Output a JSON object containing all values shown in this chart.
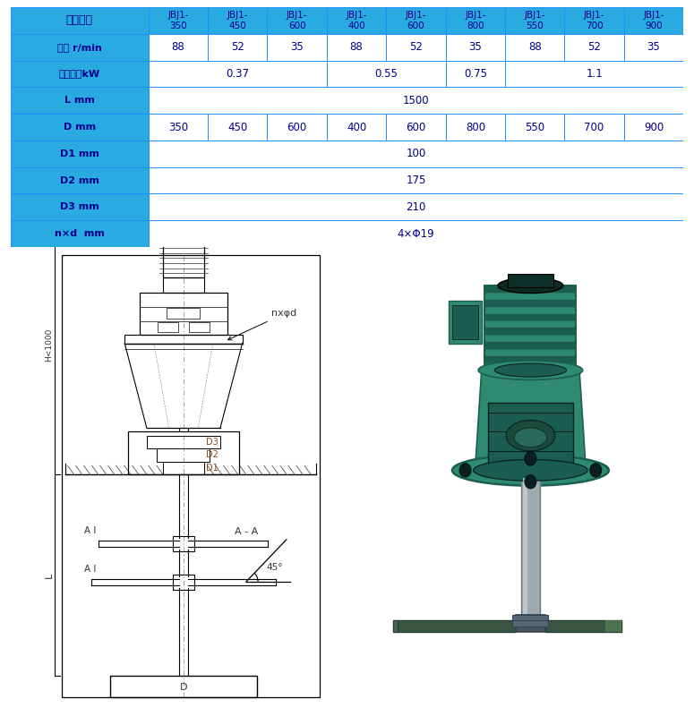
{
  "table_header_bg": "#29ABE2",
  "table_label_bg": "#29ABE2",
  "table_data_bg": "#FFFFFF",
  "table_border_color": "#1E90FF",
  "table_text_color": "#00008B",
  "bg_color": "#FFFFFF",
  "col0_label": "主要参数",
  "col_headers": [
    "JBJ1-\n350",
    "JBJ1-\n450",
    "JBJ1-\n600",
    "JBJ1-\n400",
    "JBJ1-\n600",
    "JBJ1-\n800",
    "JBJ1-\n550",
    "JBJ1-\n700",
    "JBJ1-\n900"
  ],
  "row_labels": [
    "转速 r/min",
    "电机功率kW",
    "L mm",
    "D mm",
    "D1 mm",
    "D2 mm",
    "D3 mm",
    "n×d  mm"
  ],
  "row_speed": [
    "88",
    "52",
    "35",
    "88",
    "52",
    "35",
    "88",
    "52",
    "35"
  ],
  "row_power_spans": [
    [
      0,
      3,
      "0.37"
    ],
    [
      3,
      5,
      "0.55"
    ],
    [
      5,
      6,
      "0.75"
    ],
    [
      6,
      9,
      "1.1"
    ]
  ],
  "row_L": "1500",
  "row_D": [
    "350",
    "450",
    "600",
    "400",
    "600",
    "800",
    "550",
    "700",
    "900"
  ],
  "row_D1": "100",
  "row_D2": "175",
  "row_D3": "210",
  "row_nd": "4×Φ19",
  "diagram_color": "#333333",
  "diagram_dim_color": "#8B4513",
  "teal_dark": "#1B5E50",
  "teal_mid": "#2E8B70",
  "teal_light": "#3DB890",
  "shaft_color": "#A0A8B0",
  "shaft_dark": "#707880",
  "blade_color": "#557766"
}
